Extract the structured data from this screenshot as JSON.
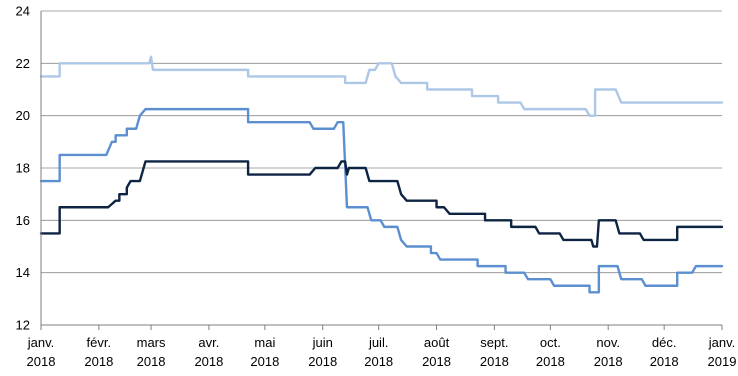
{
  "chart_data": {
    "type": "line",
    "title": "",
    "xlabel": "",
    "ylabel": "",
    "ylim": [
      12,
      24
    ],
    "yticks": [
      12,
      14,
      16,
      18,
      20,
      22,
      24
    ],
    "xlim": [
      "2018-01-01",
      "2019-01-01"
    ],
    "xticks": [
      {
        "month": "janv.",
        "year": "2018",
        "date": "2018-01-01"
      },
      {
        "month": "févr.",
        "year": "2018",
        "date": "2018-02-01"
      },
      {
        "month": "mars",
        "year": "2018",
        "date": "2018-03-01"
      },
      {
        "month": "avr.",
        "year": "2018",
        "date": "2018-04-01"
      },
      {
        "month": "mai",
        "year": "2018",
        "date": "2018-05-01"
      },
      {
        "month": "juin",
        "year": "2018",
        "date": "2018-06-01"
      },
      {
        "month": "juil.",
        "year": "2018",
        "date": "2018-07-01"
      },
      {
        "month": "août",
        "year": "2018",
        "date": "2018-08-01"
      },
      {
        "month": "sept.",
        "year": "2018",
        "date": "2018-09-01"
      },
      {
        "month": "oct.",
        "year": "2018",
        "date": "2018-10-01"
      },
      {
        "month": "nov.",
        "year": "2018",
        "date": "2018-11-01"
      },
      {
        "month": "déc.",
        "year": "2018",
        "date": "2018-12-01"
      },
      {
        "month": "janv.",
        "year": "2019",
        "date": "2019-01-01"
      }
    ],
    "grid": true,
    "legend": "none",
    "series": [
      {
        "color": "#adc8e6",
        "points": [
          [
            "2018-01-01",
            21.5
          ],
          [
            "2018-01-11",
            21.5
          ],
          [
            "2018-01-11",
            22.0
          ],
          [
            "2018-02-28",
            22.0
          ],
          [
            "2018-03-01",
            22.25
          ],
          [
            "2018-03-02",
            21.75
          ],
          [
            "2018-04-01",
            21.75
          ],
          [
            "2018-04-22",
            21.75
          ],
          [
            "2018-04-22",
            21.5
          ],
          [
            "2018-06-13",
            21.5
          ],
          [
            "2018-06-13",
            21.25
          ],
          [
            "2018-06-24",
            21.25
          ],
          [
            "2018-06-26",
            21.75
          ],
          [
            "2018-06-29",
            21.75
          ],
          [
            "2018-07-01",
            22.0
          ],
          [
            "2018-07-08",
            22.0
          ],
          [
            "2018-07-10",
            21.5
          ],
          [
            "2018-07-13",
            21.25
          ],
          [
            "2018-07-27",
            21.25
          ],
          [
            "2018-07-27",
            21.0
          ],
          [
            "2018-08-20",
            21.0
          ],
          [
            "2018-08-20",
            20.75
          ],
          [
            "2018-09-03",
            20.75
          ],
          [
            "2018-09-03",
            20.5
          ],
          [
            "2018-09-15",
            20.5
          ],
          [
            "2018-09-17",
            20.25
          ],
          [
            "2018-10-20",
            20.25
          ],
          [
            "2018-10-22",
            20.0
          ],
          [
            "2018-10-25",
            20.0
          ],
          [
            "2018-10-25",
            21.0
          ],
          [
            "2018-11-05",
            21.0
          ],
          [
            "2018-11-08",
            20.5
          ],
          [
            "2019-01-01",
            20.5
          ]
        ]
      },
      {
        "color": "#5b8fd0",
        "points": [
          [
            "2018-01-01",
            17.5
          ],
          [
            "2018-01-11",
            17.5
          ],
          [
            "2018-01-11",
            18.5
          ],
          [
            "2018-02-05",
            18.5
          ],
          [
            "2018-02-08",
            19.0
          ],
          [
            "2018-02-10",
            19.0
          ],
          [
            "2018-02-10",
            19.25
          ],
          [
            "2018-02-16",
            19.25
          ],
          [
            "2018-02-16",
            19.5
          ],
          [
            "2018-02-21",
            19.5
          ],
          [
            "2018-02-23",
            20.0
          ],
          [
            "2018-02-26",
            20.25
          ],
          [
            "2018-04-22",
            20.25
          ],
          [
            "2018-04-22",
            19.75
          ],
          [
            "2018-05-25",
            19.75
          ],
          [
            "2018-05-27",
            19.5
          ],
          [
            "2018-06-07",
            19.5
          ],
          [
            "2018-06-09",
            19.75
          ],
          [
            "2018-06-12",
            19.75
          ],
          [
            "2018-06-14",
            16.5
          ],
          [
            "2018-06-25",
            16.5
          ],
          [
            "2018-06-27",
            16.0
          ],
          [
            "2018-07-02",
            16.0
          ],
          [
            "2018-07-04",
            15.75
          ],
          [
            "2018-07-11",
            15.75
          ],
          [
            "2018-07-13",
            15.25
          ],
          [
            "2018-07-16",
            15.0
          ],
          [
            "2018-07-29",
            15.0
          ],
          [
            "2018-07-29",
            14.75
          ],
          [
            "2018-08-01",
            14.75
          ],
          [
            "2018-08-03",
            14.5
          ],
          [
            "2018-08-23",
            14.5
          ],
          [
            "2018-08-23",
            14.25
          ],
          [
            "2018-09-07",
            14.25
          ],
          [
            "2018-09-07",
            14.0
          ],
          [
            "2018-09-17",
            14.0
          ],
          [
            "2018-09-19",
            13.75
          ],
          [
            "2018-10-01",
            13.75
          ],
          [
            "2018-10-03",
            13.5
          ],
          [
            "2018-10-22",
            13.5
          ],
          [
            "2018-10-22",
            13.25
          ],
          [
            "2018-10-27",
            13.25
          ],
          [
            "2018-10-27",
            14.25
          ],
          [
            "2018-11-06",
            14.25
          ],
          [
            "2018-11-08",
            13.75
          ],
          [
            "2018-11-19",
            13.75
          ],
          [
            "2018-11-21",
            13.5
          ],
          [
            "2018-12-08",
            13.5
          ],
          [
            "2018-12-08",
            14.0
          ],
          [
            "2018-12-16",
            14.0
          ],
          [
            "2018-12-18",
            14.25
          ],
          [
            "2019-01-01",
            14.25
          ]
        ]
      },
      {
        "color": "#0d2442",
        "points": [
          [
            "2018-01-01",
            15.5
          ],
          [
            "2018-01-11",
            15.5
          ],
          [
            "2018-01-11",
            16.5
          ],
          [
            "2018-02-06",
            16.5
          ],
          [
            "2018-02-10",
            16.75
          ],
          [
            "2018-02-12",
            16.75
          ],
          [
            "2018-02-12",
            17.0
          ],
          [
            "2018-02-16",
            17.0
          ],
          [
            "2018-02-16",
            17.25
          ],
          [
            "2018-02-18",
            17.5
          ],
          [
            "2018-02-23",
            17.5
          ],
          [
            "2018-02-26",
            18.25
          ],
          [
            "2018-04-22",
            18.25
          ],
          [
            "2018-04-22",
            17.75
          ],
          [
            "2018-05-25",
            17.75
          ],
          [
            "2018-05-28",
            18.0
          ],
          [
            "2018-06-09",
            18.0
          ],
          [
            "2018-06-11",
            18.25
          ],
          [
            "2018-06-13",
            18.25
          ],
          [
            "2018-06-14",
            17.75
          ],
          [
            "2018-06-15",
            18.0
          ],
          [
            "2018-06-23",
            18.0
          ],
          [
            "2018-06-24",
            18.0
          ],
          [
            "2018-06-26",
            17.5
          ],
          [
            "2018-07-11",
            17.5
          ],
          [
            "2018-07-13",
            17.0
          ],
          [
            "2018-07-16",
            16.75
          ],
          [
            "2018-08-01",
            16.75
          ],
          [
            "2018-08-01",
            16.5
          ],
          [
            "2018-08-05",
            16.5
          ],
          [
            "2018-08-08",
            16.25
          ],
          [
            "2018-08-27",
            16.25
          ],
          [
            "2018-08-27",
            16.0
          ],
          [
            "2018-09-10",
            16.0
          ],
          [
            "2018-09-10",
            15.75
          ],
          [
            "2018-09-23",
            15.75
          ],
          [
            "2018-09-25",
            15.5
          ],
          [
            "2018-10-06",
            15.5
          ],
          [
            "2018-10-08",
            15.25
          ],
          [
            "2018-10-23",
            15.25
          ],
          [
            "2018-10-24",
            15.0
          ],
          [
            "2018-10-26",
            15.0
          ],
          [
            "2018-10-27",
            16.0
          ],
          [
            "2018-11-05",
            16.0
          ],
          [
            "2018-11-07",
            15.5
          ],
          [
            "2018-11-18",
            15.5
          ],
          [
            "2018-11-20",
            15.25
          ],
          [
            "2018-12-08",
            15.25
          ],
          [
            "2018-12-08",
            15.75
          ],
          [
            "2019-01-01",
            15.75
          ]
        ]
      }
    ]
  }
}
